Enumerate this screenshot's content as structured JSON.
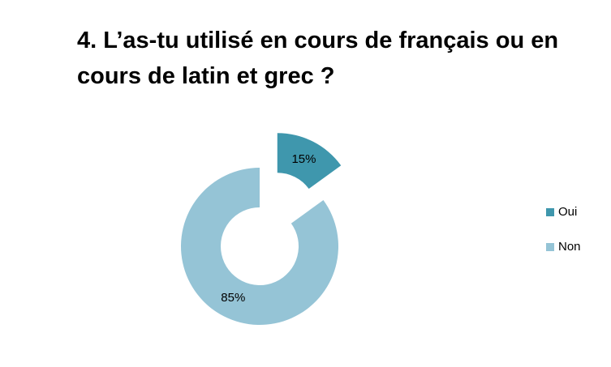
{
  "chart_data": {
    "type": "donut",
    "title": "4. L’as-tu utilisé en cours de français ou en cours de latin et grec ?",
    "categories": [
      "Oui",
      "Non"
    ],
    "values": [
      15,
      85
    ],
    "value_labels": [
      "15%",
      "85%"
    ],
    "colors": [
      "#3f97ad",
      "#95c4d6"
    ],
    "legend": "right"
  }
}
